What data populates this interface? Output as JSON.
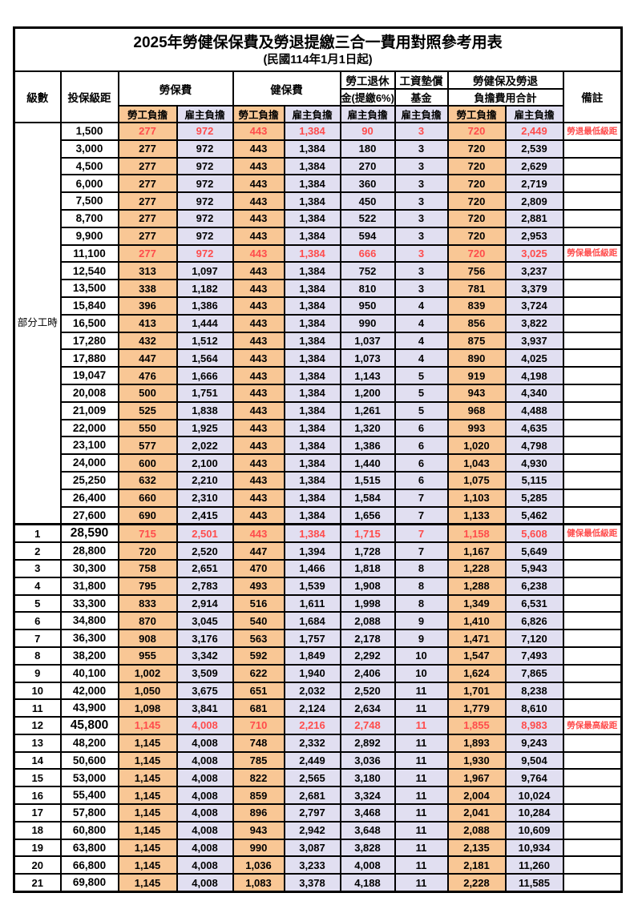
{
  "title": "2025年勞健保保費及勞退提繳三合一費用對照參考用表",
  "subtitle": "(民國114年1月1日起)",
  "colors": {
    "worker_bg": "#F9C795",
    "employer_bg": "#E1DFF1",
    "highlight_red": "#FF4C4C",
    "border": "#000000"
  },
  "header": {
    "level": "級數",
    "bracket": "投保級距",
    "labor_insurance": "勞保費",
    "health_insurance": "健保費",
    "pension_line1": "勞工退休",
    "pension_line2": "金(提繳6%)",
    "wage_fund_line1": "工資墊償",
    "wage_fund_line2": "基金",
    "total_line1": "勞健保及勞退",
    "total_line2": "負擔費用合計",
    "worker": "勞工負擔",
    "employer": "雇主負擔",
    "note": "備註"
  },
  "part_time": {
    "label": "部分工時",
    "rowspan": 23
  },
  "column_keys": [
    "labor_worker",
    "labor_employer",
    "health_worker",
    "health_employer",
    "pension_employer",
    "wage_fund_employer",
    "total_worker",
    "total_employer"
  ],
  "rows": [
    {
      "level": "",
      "bracket": "1,500",
      "values": [
        "277",
        "972",
        "443",
        "1,384",
        "90",
        "3",
        "720",
        "2,449"
      ],
      "note": "勞退最低級距",
      "red": true
    },
    {
      "level": "",
      "bracket": "3,000",
      "values": [
        "277",
        "972",
        "443",
        "1,384",
        "180",
        "3",
        "720",
        "2,539"
      ],
      "note": ""
    },
    {
      "level": "",
      "bracket": "4,500",
      "values": [
        "277",
        "972",
        "443",
        "1,384",
        "270",
        "3",
        "720",
        "2,629"
      ],
      "note": ""
    },
    {
      "level": "",
      "bracket": "6,000",
      "values": [
        "277",
        "972",
        "443",
        "1,384",
        "360",
        "3",
        "720",
        "2,719"
      ],
      "note": ""
    },
    {
      "level": "",
      "bracket": "7,500",
      "values": [
        "277",
        "972",
        "443",
        "1,384",
        "450",
        "3",
        "720",
        "2,809"
      ],
      "note": ""
    },
    {
      "level": "",
      "bracket": "8,700",
      "values": [
        "277",
        "972",
        "443",
        "1,384",
        "522",
        "3",
        "720",
        "2,881"
      ],
      "note": ""
    },
    {
      "level": "",
      "bracket": "9,900",
      "values": [
        "277",
        "972",
        "443",
        "1,384",
        "594",
        "3",
        "720",
        "2,953"
      ],
      "note": ""
    },
    {
      "level": "",
      "bracket": "11,100",
      "values": [
        "277",
        "972",
        "443",
        "1,384",
        "666",
        "3",
        "720",
        "3,025"
      ],
      "note": "勞保最低級距",
      "red": true
    },
    {
      "level": "",
      "bracket": "12,540",
      "values": [
        "313",
        "1,097",
        "443",
        "1,384",
        "752",
        "3",
        "756",
        "3,237"
      ],
      "note": ""
    },
    {
      "level": "",
      "bracket": "13,500",
      "values": [
        "338",
        "1,182",
        "443",
        "1,384",
        "810",
        "3",
        "781",
        "3,379"
      ],
      "note": ""
    },
    {
      "level": "",
      "bracket": "15,840",
      "values": [
        "396",
        "1,386",
        "443",
        "1,384",
        "950",
        "4",
        "839",
        "3,724"
      ],
      "note": ""
    },
    {
      "level": "",
      "bracket": "16,500",
      "values": [
        "413",
        "1,444",
        "443",
        "1,384",
        "990",
        "4",
        "856",
        "3,822"
      ],
      "note": ""
    },
    {
      "level": "",
      "bracket": "17,280",
      "values": [
        "432",
        "1,512",
        "443",
        "1,384",
        "1,037",
        "4",
        "875",
        "3,937"
      ],
      "note": ""
    },
    {
      "level": "",
      "bracket": "17,880",
      "values": [
        "447",
        "1,564",
        "443",
        "1,384",
        "1,073",
        "4",
        "890",
        "4,025"
      ],
      "note": ""
    },
    {
      "level": "",
      "bracket": "19,047",
      "values": [
        "476",
        "1,666",
        "443",
        "1,384",
        "1,143",
        "5",
        "919",
        "4,198"
      ],
      "note": ""
    },
    {
      "level": "",
      "bracket": "20,008",
      "values": [
        "500",
        "1,751",
        "443",
        "1,384",
        "1,200",
        "5",
        "943",
        "4,340"
      ],
      "note": ""
    },
    {
      "level": "",
      "bracket": "21,009",
      "values": [
        "525",
        "1,838",
        "443",
        "1,384",
        "1,261",
        "5",
        "968",
        "4,488"
      ],
      "note": ""
    },
    {
      "level": "",
      "bracket": "22,000",
      "values": [
        "550",
        "1,925",
        "443",
        "1,384",
        "1,320",
        "6",
        "993",
        "4,635"
      ],
      "note": ""
    },
    {
      "level": "",
      "bracket": "23,100",
      "values": [
        "577",
        "2,022",
        "443",
        "1,384",
        "1,386",
        "6",
        "1,020",
        "4,798"
      ],
      "note": ""
    },
    {
      "level": "",
      "bracket": "24,000",
      "values": [
        "600",
        "2,100",
        "443",
        "1,384",
        "1,440",
        "6",
        "1,043",
        "4,930"
      ],
      "note": ""
    },
    {
      "level": "",
      "bracket": "25,250",
      "values": [
        "632",
        "2,210",
        "443",
        "1,384",
        "1,515",
        "6",
        "1,075",
        "5,115"
      ],
      "note": ""
    },
    {
      "level": "",
      "bracket": "26,400",
      "values": [
        "660",
        "2,310",
        "443",
        "1,384",
        "1,584",
        "7",
        "1,103",
        "5,285"
      ],
      "note": ""
    },
    {
      "level": "",
      "bracket": "27,600",
      "values": [
        "690",
        "2,415",
        "443",
        "1,384",
        "1,656",
        "7",
        "1,133",
        "5,462"
      ],
      "note": ""
    },
    {
      "level": "1",
      "bracket": "28,590",
      "values": [
        "715",
        "2,501",
        "443",
        "1,384",
        "1,715",
        "7",
        "1,158",
        "5,608"
      ],
      "note": "健保最低級距",
      "red": true,
      "bold_bracket": true,
      "thick_top": true
    },
    {
      "level": "2",
      "bracket": "28,800",
      "values": [
        "720",
        "2,520",
        "447",
        "1,394",
        "1,728",
        "7",
        "1,167",
        "5,649"
      ],
      "note": ""
    },
    {
      "level": "3",
      "bracket": "30,300",
      "values": [
        "758",
        "2,651",
        "470",
        "1,466",
        "1,818",
        "8",
        "1,228",
        "5,943"
      ],
      "note": ""
    },
    {
      "level": "4",
      "bracket": "31,800",
      "values": [
        "795",
        "2,783",
        "493",
        "1,539",
        "1,908",
        "8",
        "1,288",
        "6,238"
      ],
      "note": ""
    },
    {
      "level": "5",
      "bracket": "33,300",
      "values": [
        "833",
        "2,914",
        "516",
        "1,611",
        "1,998",
        "8",
        "1,349",
        "6,531"
      ],
      "note": ""
    },
    {
      "level": "6",
      "bracket": "34,800",
      "values": [
        "870",
        "3,045",
        "540",
        "1,684",
        "2,088",
        "9",
        "1,410",
        "6,826"
      ],
      "note": ""
    },
    {
      "level": "7",
      "bracket": "36,300",
      "values": [
        "908",
        "3,176",
        "563",
        "1,757",
        "2,178",
        "9",
        "1,471",
        "7,120"
      ],
      "note": ""
    },
    {
      "level": "8",
      "bracket": "38,200",
      "values": [
        "955",
        "3,342",
        "592",
        "1,849",
        "2,292",
        "10",
        "1,547",
        "7,493"
      ],
      "note": ""
    },
    {
      "level": "9",
      "bracket": "40,100",
      "values": [
        "1,002",
        "3,509",
        "622",
        "1,940",
        "2,406",
        "10",
        "1,624",
        "7,865"
      ],
      "note": ""
    },
    {
      "level": "10",
      "bracket": "42,000",
      "values": [
        "1,050",
        "3,675",
        "651",
        "2,032",
        "2,520",
        "11",
        "1,701",
        "8,238"
      ],
      "note": ""
    },
    {
      "level": "11",
      "bracket": "43,900",
      "values": [
        "1,098",
        "3,841",
        "681",
        "2,124",
        "2,634",
        "11",
        "1,779",
        "8,610"
      ],
      "note": ""
    },
    {
      "level": "12",
      "bracket": "45,800",
      "values": [
        "1,145",
        "4,008",
        "710",
        "2,216",
        "2,748",
        "11",
        "1,855",
        "8,983"
      ],
      "note": "勞保最高級距",
      "red": true,
      "bold_bracket": true
    },
    {
      "level": "13",
      "bracket": "48,200",
      "values": [
        "1,145",
        "4,008",
        "748",
        "2,332",
        "2,892",
        "11",
        "1,893",
        "9,243"
      ],
      "note": ""
    },
    {
      "level": "14",
      "bracket": "50,600",
      "values": [
        "1,145",
        "4,008",
        "785",
        "2,449",
        "3,036",
        "11",
        "1,930",
        "9,504"
      ],
      "note": ""
    },
    {
      "level": "15",
      "bracket": "53,000",
      "values": [
        "1,145",
        "4,008",
        "822",
        "2,565",
        "3,180",
        "11",
        "1,967",
        "9,764"
      ],
      "note": ""
    },
    {
      "level": "16",
      "bracket": "55,400",
      "values": [
        "1,145",
        "4,008",
        "859",
        "2,681",
        "3,324",
        "11",
        "2,004",
        "10,024"
      ],
      "note": ""
    },
    {
      "level": "17",
      "bracket": "57,800",
      "values": [
        "1,145",
        "4,008",
        "896",
        "2,797",
        "3,468",
        "11",
        "2,041",
        "10,284"
      ],
      "note": ""
    },
    {
      "level": "18",
      "bracket": "60,800",
      "values": [
        "1,145",
        "4,008",
        "943",
        "2,942",
        "3,648",
        "11",
        "2,088",
        "10,609"
      ],
      "note": ""
    },
    {
      "level": "19",
      "bracket": "63,800",
      "values": [
        "1,145",
        "4,008",
        "990",
        "3,087",
        "3,828",
        "11",
        "2,135",
        "10,934"
      ],
      "note": ""
    },
    {
      "level": "20",
      "bracket": "66,800",
      "values": [
        "1,145",
        "4,008",
        "1,036",
        "3,233",
        "4,008",
        "11",
        "2,181",
        "11,260"
      ],
      "note": ""
    },
    {
      "level": "21",
      "bracket": "69,800",
      "values": [
        "1,145",
        "4,008",
        "1,083",
        "3,378",
        "4,188",
        "11",
        "2,228",
        "11,585"
      ],
      "note": ""
    }
  ]
}
